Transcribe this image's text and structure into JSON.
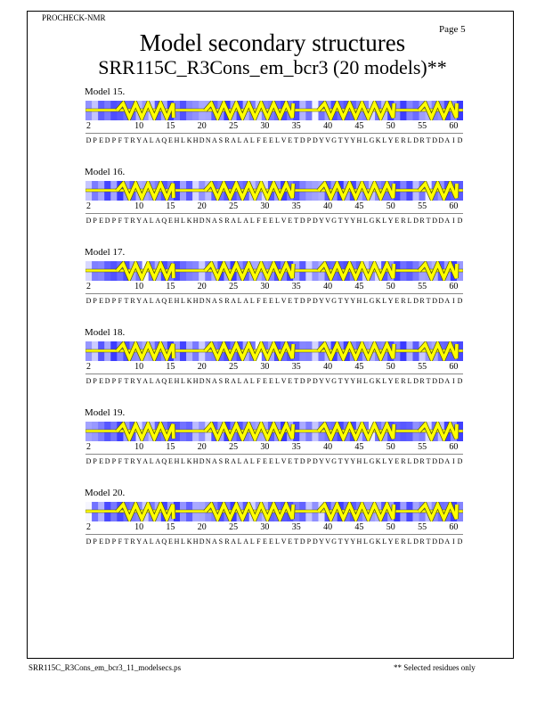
{
  "header": {
    "program": "PROCHECK-NMR",
    "page": "Page  5",
    "title": "Model secondary structures",
    "subtitle": "SRR115C_R3Cons_em_bcr3 (20 models)**"
  },
  "sequence": "DPEDPFTRYALAQEHLKHDNASRALALFEELVETDPDYVGTYYHLGKLYERLDRTDDAID",
  "residue_start": 2,
  "tick_labels": [
    "2",
    "10",
    "15",
    "20",
    "25",
    "30",
    "35",
    "40",
    "45",
    "50",
    "55",
    "60"
  ],
  "helix_segments": [
    [
      7,
      15
    ],
    [
      21,
      34
    ],
    [
      39,
      50
    ],
    [
      55,
      60
    ]
  ],
  "colors": {
    "band_dark": "#1a1aff",
    "band_light": "#ffffff",
    "helix": "#ffff00",
    "helix_outline": "#5a5a00"
  },
  "models": [
    {
      "label": "Model 15."
    },
    {
      "label": "Model 16."
    },
    {
      "label": "Model 17."
    },
    {
      "label": "Model 18."
    },
    {
      "label": "Model 19."
    },
    {
      "label": "Model 20."
    }
  ],
  "footer": {
    "filename": "SRR115C_R3Cons_em_bcr3_11_modelsecs.ps",
    "note": "** Selected residues only"
  }
}
